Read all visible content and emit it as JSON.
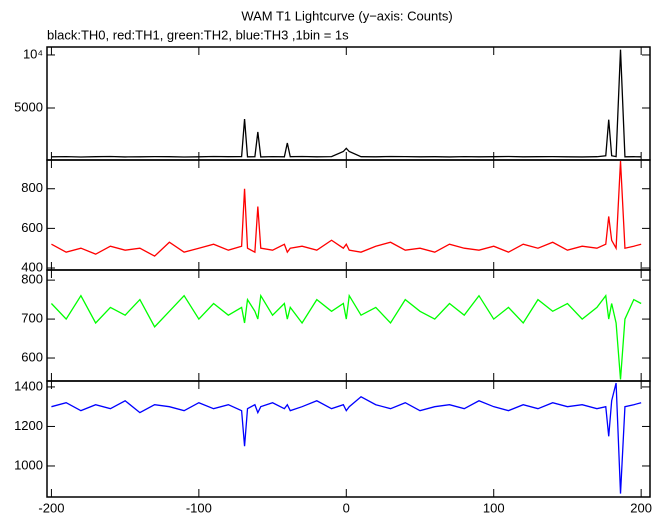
{
  "chart_data": [
    {
      "type": "line",
      "title": "WAM T1 Lightcurve (y−axis: Counts)",
      "subtitle": "black:TH0, red:TH1, green:TH2, blue:TH3 ,1bin = 1s",
      "xlim": [
        -203,
        206
      ],
      "xticks": [
        -200,
        -100,
        0,
        100,
        200
      ],
      "ylim": [
        100,
        10750
      ],
      "yticks": [
        {
          "value": 10000,
          "label": "10⁴"
        },
        5000
      ],
      "x": [
        -200,
        -190,
        -180,
        -170,
        -160,
        -150,
        -140,
        -130,
        -120,
        -110,
        -100,
        -90,
        -80,
        -71,
        -69,
        -67,
        -62,
        -60,
        -58,
        -50,
        -42,
        -40,
        -38,
        -30,
        -20,
        -10,
        -2,
        0,
        2,
        10,
        20,
        30,
        40,
        50,
        60,
        70,
        80,
        90,
        100,
        110,
        120,
        130,
        140,
        150,
        160,
        170,
        176,
        178,
        180,
        183,
        186,
        189,
        195,
        200
      ],
      "series": [
        {
          "color": "#000000",
          "values": [
            400,
            420,
            380,
            410,
            430,
            390,
            400,
            420,
            410,
            380,
            400,
            430,
            410,
            420,
            3960,
            400,
            410,
            2740,
            390,
            420,
            400,
            1700,
            410,
            430,
            400,
            420,
            900,
            1200,
            900,
            410,
            400,
            430,
            420,
            400,
            410,
            390,
            420,
            400,
            410,
            430,
            400,
            410,
            420,
            400,
            390,
            410,
            500,
            3900,
            500,
            420,
            10500,
            400,
            410,
            400
          ]
        }
      ]
    },
    {
      "type": "line",
      "xlim": [
        -203,
        206
      ],
      "xticks": [
        -200,
        -100,
        0,
        100,
        200
      ],
      "ylim": [
        390,
        945
      ],
      "yticks": [
        400,
        600,
        800
      ],
      "x": [
        -200,
        -190,
        -180,
        -170,
        -160,
        -150,
        -140,
        -130,
        -120,
        -110,
        -100,
        -90,
        -80,
        -71,
        -69,
        -67,
        -62,
        -60,
        -58,
        -50,
        -42,
        -40,
        -38,
        -30,
        -20,
        -10,
        -2,
        0,
        2,
        10,
        20,
        30,
        40,
        50,
        60,
        70,
        80,
        90,
        100,
        110,
        120,
        130,
        140,
        150,
        160,
        170,
        176,
        178,
        180,
        183,
        186,
        189,
        195,
        200
      ],
      "series": [
        {
          "color": "#ff0000",
          "values": [
            520,
            480,
            500,
            470,
            510,
            490,
            500,
            460,
            530,
            480,
            500,
            520,
            490,
            510,
            800,
            500,
            480,
            710,
            500,
            490,
            520,
            480,
            500,
            510,
            490,
            540,
            500,
            520,
            490,
            480,
            510,
            530,
            490,
            500,
            480,
            520,
            500,
            490,
            510,
            480,
            520,
            500,
            530,
            490,
            510,
            500,
            520,
            660,
            540,
            500,
            940,
            500,
            510,
            520
          ]
        }
      ]
    },
    {
      "type": "line",
      "xlim": [
        -203,
        206
      ],
      "xticks": [
        -200,
        -100,
        0,
        100,
        200
      ],
      "ylim": [
        541,
        826
      ],
      "yticks": [
        600,
        700,
        800
      ],
      "x": [
        -200,
        -190,
        -180,
        -170,
        -160,
        -150,
        -140,
        -130,
        -120,
        -110,
        -100,
        -90,
        -80,
        -71,
        -69,
        -67,
        -62,
        -60,
        -58,
        -50,
        -42,
        -40,
        -38,
        -30,
        -20,
        -10,
        -2,
        0,
        2,
        10,
        20,
        30,
        40,
        50,
        60,
        70,
        80,
        90,
        100,
        110,
        120,
        130,
        140,
        150,
        160,
        170,
        176,
        178,
        180,
        183,
        186,
        189,
        195,
        200
      ],
      "series": [
        {
          "color": "#00ff00",
          "values": [
            740,
            700,
            760,
            690,
            730,
            710,
            750,
            680,
            720,
            760,
            700,
            740,
            710,
            730,
            690,
            750,
            720,
            700,
            760,
            710,
            740,
            700,
            730,
            690,
            750,
            720,
            740,
            700,
            760,
            710,
            730,
            690,
            750,
            720,
            700,
            740,
            710,
            760,
            700,
            730,
            690,
            750,
            720,
            740,
            700,
            730,
            760,
            700,
            740,
            690,
            545,
            700,
            750,
            740
          ]
        }
      ]
    },
    {
      "type": "line",
      "xlim": [
        -203,
        206
      ],
      "xticks": [
        -200,
        -100,
        0,
        100,
        200
      ],
      "ylim": [
        843,
        1430
      ],
      "yticks": [
        1000,
        1200,
        1400
      ],
      "x": [
        -200,
        -190,
        -180,
        -170,
        -160,
        -150,
        -140,
        -130,
        -120,
        -110,
        -100,
        -90,
        -80,
        -71,
        -69,
        -67,
        -62,
        -60,
        -58,
        -50,
        -42,
        -40,
        -38,
        -30,
        -20,
        -10,
        -2,
        0,
        2,
        10,
        20,
        30,
        40,
        50,
        60,
        70,
        80,
        90,
        100,
        110,
        120,
        130,
        140,
        150,
        160,
        170,
        176,
        178,
        180,
        183,
        186,
        189,
        195,
        200
      ],
      "series": [
        {
          "color": "#0000ff",
          "values": [
            1300,
            1320,
            1280,
            1310,
            1290,
            1330,
            1270,
            1310,
            1300,
            1280,
            1320,
            1290,
            1310,
            1280,
            1100,
            1290,
            1310,
            1270,
            1300,
            1320,
            1290,
            1310,
            1280,
            1300,
            1330,
            1290,
            1310,
            1280,
            1300,
            1350,
            1310,
            1290,
            1320,
            1280,
            1300,
            1310,
            1290,
            1330,
            1300,
            1280,
            1310,
            1290,
            1320,
            1300,
            1310,
            1290,
            1300,
            1150,
            1330,
            1420,
            860,
            1300,
            1310,
            1320
          ]
        }
      ]
    }
  ]
}
